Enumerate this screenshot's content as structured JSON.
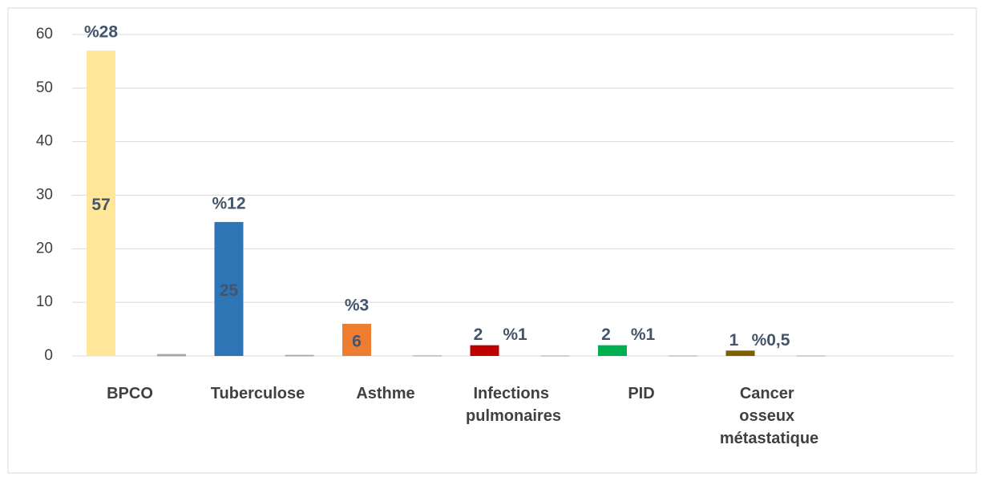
{
  "chart_data": {
    "type": "bar",
    "categories": [
      "BPCO",
      "Tuberculose",
      "Asthme",
      "Infections pulmonaires",
      "PID",
      "Cancer osseux métastatique"
    ],
    "series": [
      {
        "colors": [
          "#ffe699",
          "#2e75b6",
          "#ed7d31",
          "#c00000",
          "#00b050",
          "#7f6000"
        ],
        "values": [
          57,
          25,
          6,
          2,
          2,
          1
        ]
      },
      {
        "color": "#a6a6a6",
        "values": [
          0.28,
          0.12,
          0.03,
          0.01,
          0.01,
          0.005
        ],
        "value_labels": [
          "%28",
          "%12",
          "%3",
          "%1",
          "%1",
          "%0,5"
        ]
      }
    ],
    "ylim": [
      0,
      60
    ],
    "yticks": [
      0,
      10,
      20,
      30,
      40,
      50,
      60
    ],
    "grid": true
  }
}
